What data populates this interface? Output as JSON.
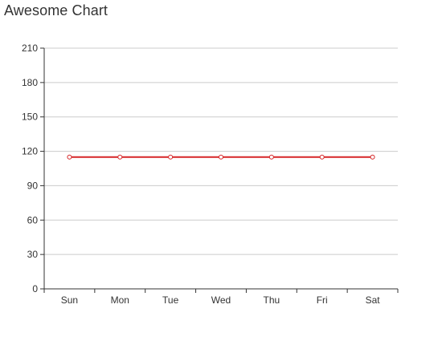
{
  "chart_data": {
    "type": "line",
    "title": "Awesome Chart",
    "xlabel": "",
    "ylabel": "",
    "categories": [
      "Sun",
      "Mon",
      "Tue",
      "Wed",
      "Thu",
      "Fri",
      "Sat"
    ],
    "series": [
      {
        "values": [
          115,
          115,
          115,
          115,
          115,
          115,
          115
        ],
        "color": "#d62728"
      }
    ],
    "ylim": [
      0,
      210
    ],
    "yticks": [
      "0",
      "30",
      "60",
      "90",
      "120",
      "150",
      "180",
      "210"
    ],
    "grid": true,
    "legend": "none",
    "colors": {
      "grid": "#cccccc",
      "axis": "#333333",
      "line": "#d62728",
      "marker_fill": "#ffffff"
    }
  }
}
